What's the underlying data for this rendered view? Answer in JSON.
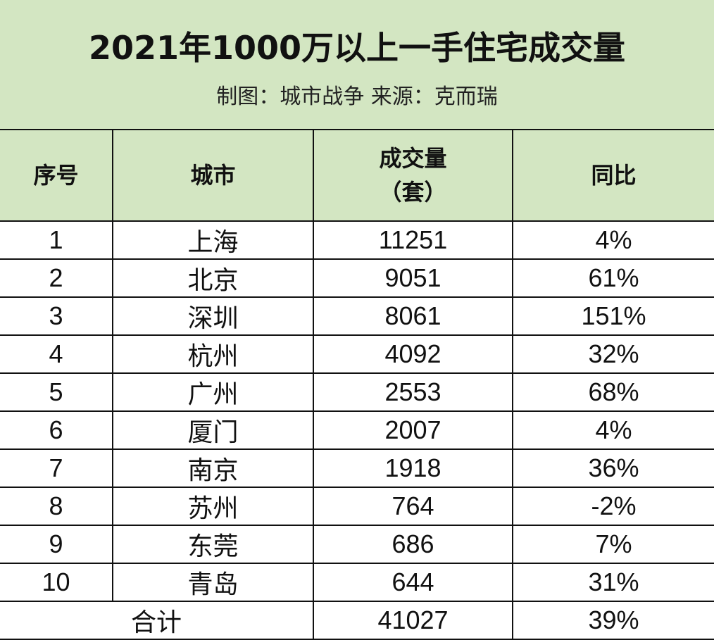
{
  "header": {
    "title": "2021年1000万以上一手住宅成交量",
    "subtitle": "制图：城市战争   来源：克而瑞"
  },
  "table": {
    "columns": [
      "序号",
      "城市",
      "成交量",
      "（套）",
      "同比"
    ],
    "rows": [
      {
        "rank": "1",
        "city": "上海",
        "volume": "11251",
        "yoy": "4%"
      },
      {
        "rank": "2",
        "city": "北京",
        "volume": "9051",
        "yoy": "61%"
      },
      {
        "rank": "3",
        "city": "深圳",
        "volume": "8061",
        "yoy": "151%"
      },
      {
        "rank": "4",
        "city": "杭州",
        "volume": "4092",
        "yoy": "32%"
      },
      {
        "rank": "5",
        "city": "广州",
        "volume": "2553",
        "yoy": "68%"
      },
      {
        "rank": "6",
        "city": "厦门",
        "volume": "2007",
        "yoy": "4%"
      },
      {
        "rank": "7",
        "city": "南京",
        "volume": "1918",
        "yoy": "36%"
      },
      {
        "rank": "8",
        "city": "苏州",
        "volume": "764",
        "yoy": "-2%"
      },
      {
        "rank": "9",
        "city": "东莞",
        "volume": "686",
        "yoy": "7%"
      },
      {
        "rank": "10",
        "city": "青岛",
        "volume": "644",
        "yoy": "31%"
      }
    ],
    "total": {
      "label": "合计",
      "volume": "41027",
      "yoy": "39%"
    }
  },
  "colors": {
    "header_bg": "#d3e6c2",
    "border": "#111111"
  }
}
